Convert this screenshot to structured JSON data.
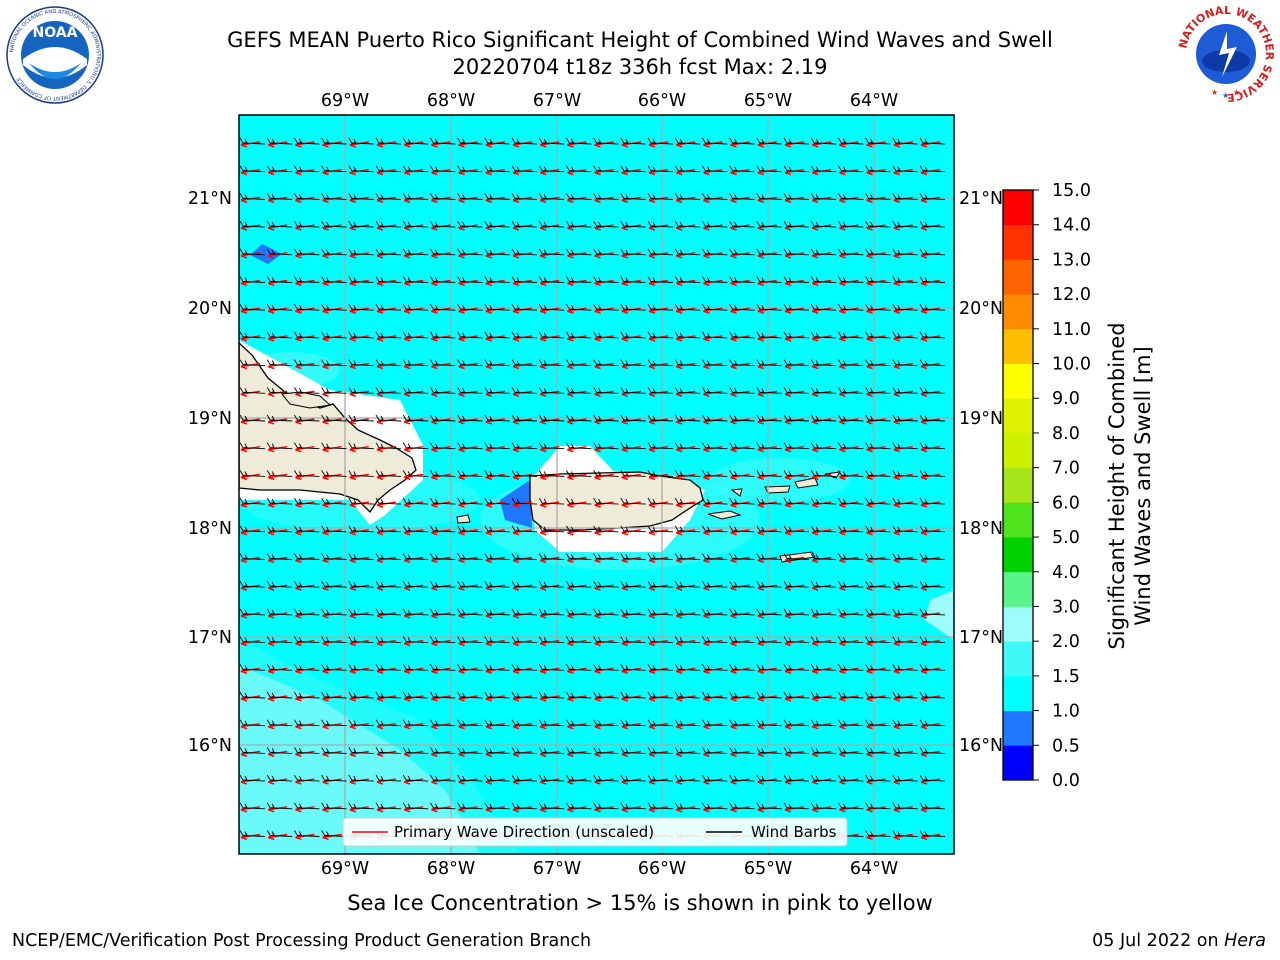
{
  "title": {
    "line1": "GEFS MEAN Puerto Rico Significant Height of Combined Wind Waves and Swell",
    "line2": "20220704 t18z 336h fcst   Max: 2.19"
  },
  "logos": {
    "noaa_text": "NOAA",
    "noaa_ring_top": "NATIONAL OCEANIC AND ATMOSPHERIC ADMINISTRATION",
    "noaa_ring_bottom": "U.S. DEPARTMENT OF COMMERCE",
    "nws_ring": "NATIONAL WEATHER SERVICE"
  },
  "map": {
    "lon_labels": [
      "69°W",
      "68°W",
      "67°W",
      "66°W",
      "65°W",
      "64°W"
    ],
    "lat_labels": [
      "21°N",
      "20°N",
      "19°N",
      "18°N",
      "17°N",
      "16°N"
    ],
    "extent": {
      "lon_min": -70.0,
      "lon_max": -63.25,
      "lat_min": 15.0,
      "lat_max": 21.75
    },
    "legend": {
      "wave_label": "Primary Wave Direction (unscaled)",
      "barb_label": "Wind Barbs",
      "wave_color": "#ff0000",
      "barb_color": "#000000"
    },
    "colors": {
      "land": "#efebd9",
      "ocean_main": "#00ffff",
      "ocean_light": "#9ffcfc",
      "ocean_mid": "#40f8f8",
      "ocean_blue": "#1f78ff",
      "grid": "#aaaaaa"
    }
  },
  "colorbar": {
    "label_line1": "Significant Height of Combined",
    "label_line2": "Wind Waves and Swell [m]",
    "ticks": [
      "0.0",
      "0.5",
      "1.0",
      "1.5",
      "2.0",
      "3.0",
      "4.0",
      "5.0",
      "6.0",
      "7.0",
      "8.0",
      "9.0",
      "10.0",
      "11.0",
      "12.0",
      "13.0",
      "14.0",
      "15.0"
    ],
    "colors": [
      "#0000ff",
      "#1f78ff",
      "#00ffff",
      "#40f8f8",
      "#9ffcfc",
      "#59f58b",
      "#00d200",
      "#4ee31a",
      "#a6e61a",
      "#ccf000",
      "#dcf200",
      "#ffff00",
      "#ffbf00",
      "#ff8c00",
      "#ff6400",
      "#ff3200",
      "#ff0000"
    ]
  },
  "sea_ice_note": "Sea Ice Concentration > 15% is shown in pink to yellow",
  "footer": {
    "left": "NCEP/EMC/Verification Post Processing Product Generation Branch",
    "right_date": "05 Jul 2022 on ",
    "right_host": "Hera"
  }
}
